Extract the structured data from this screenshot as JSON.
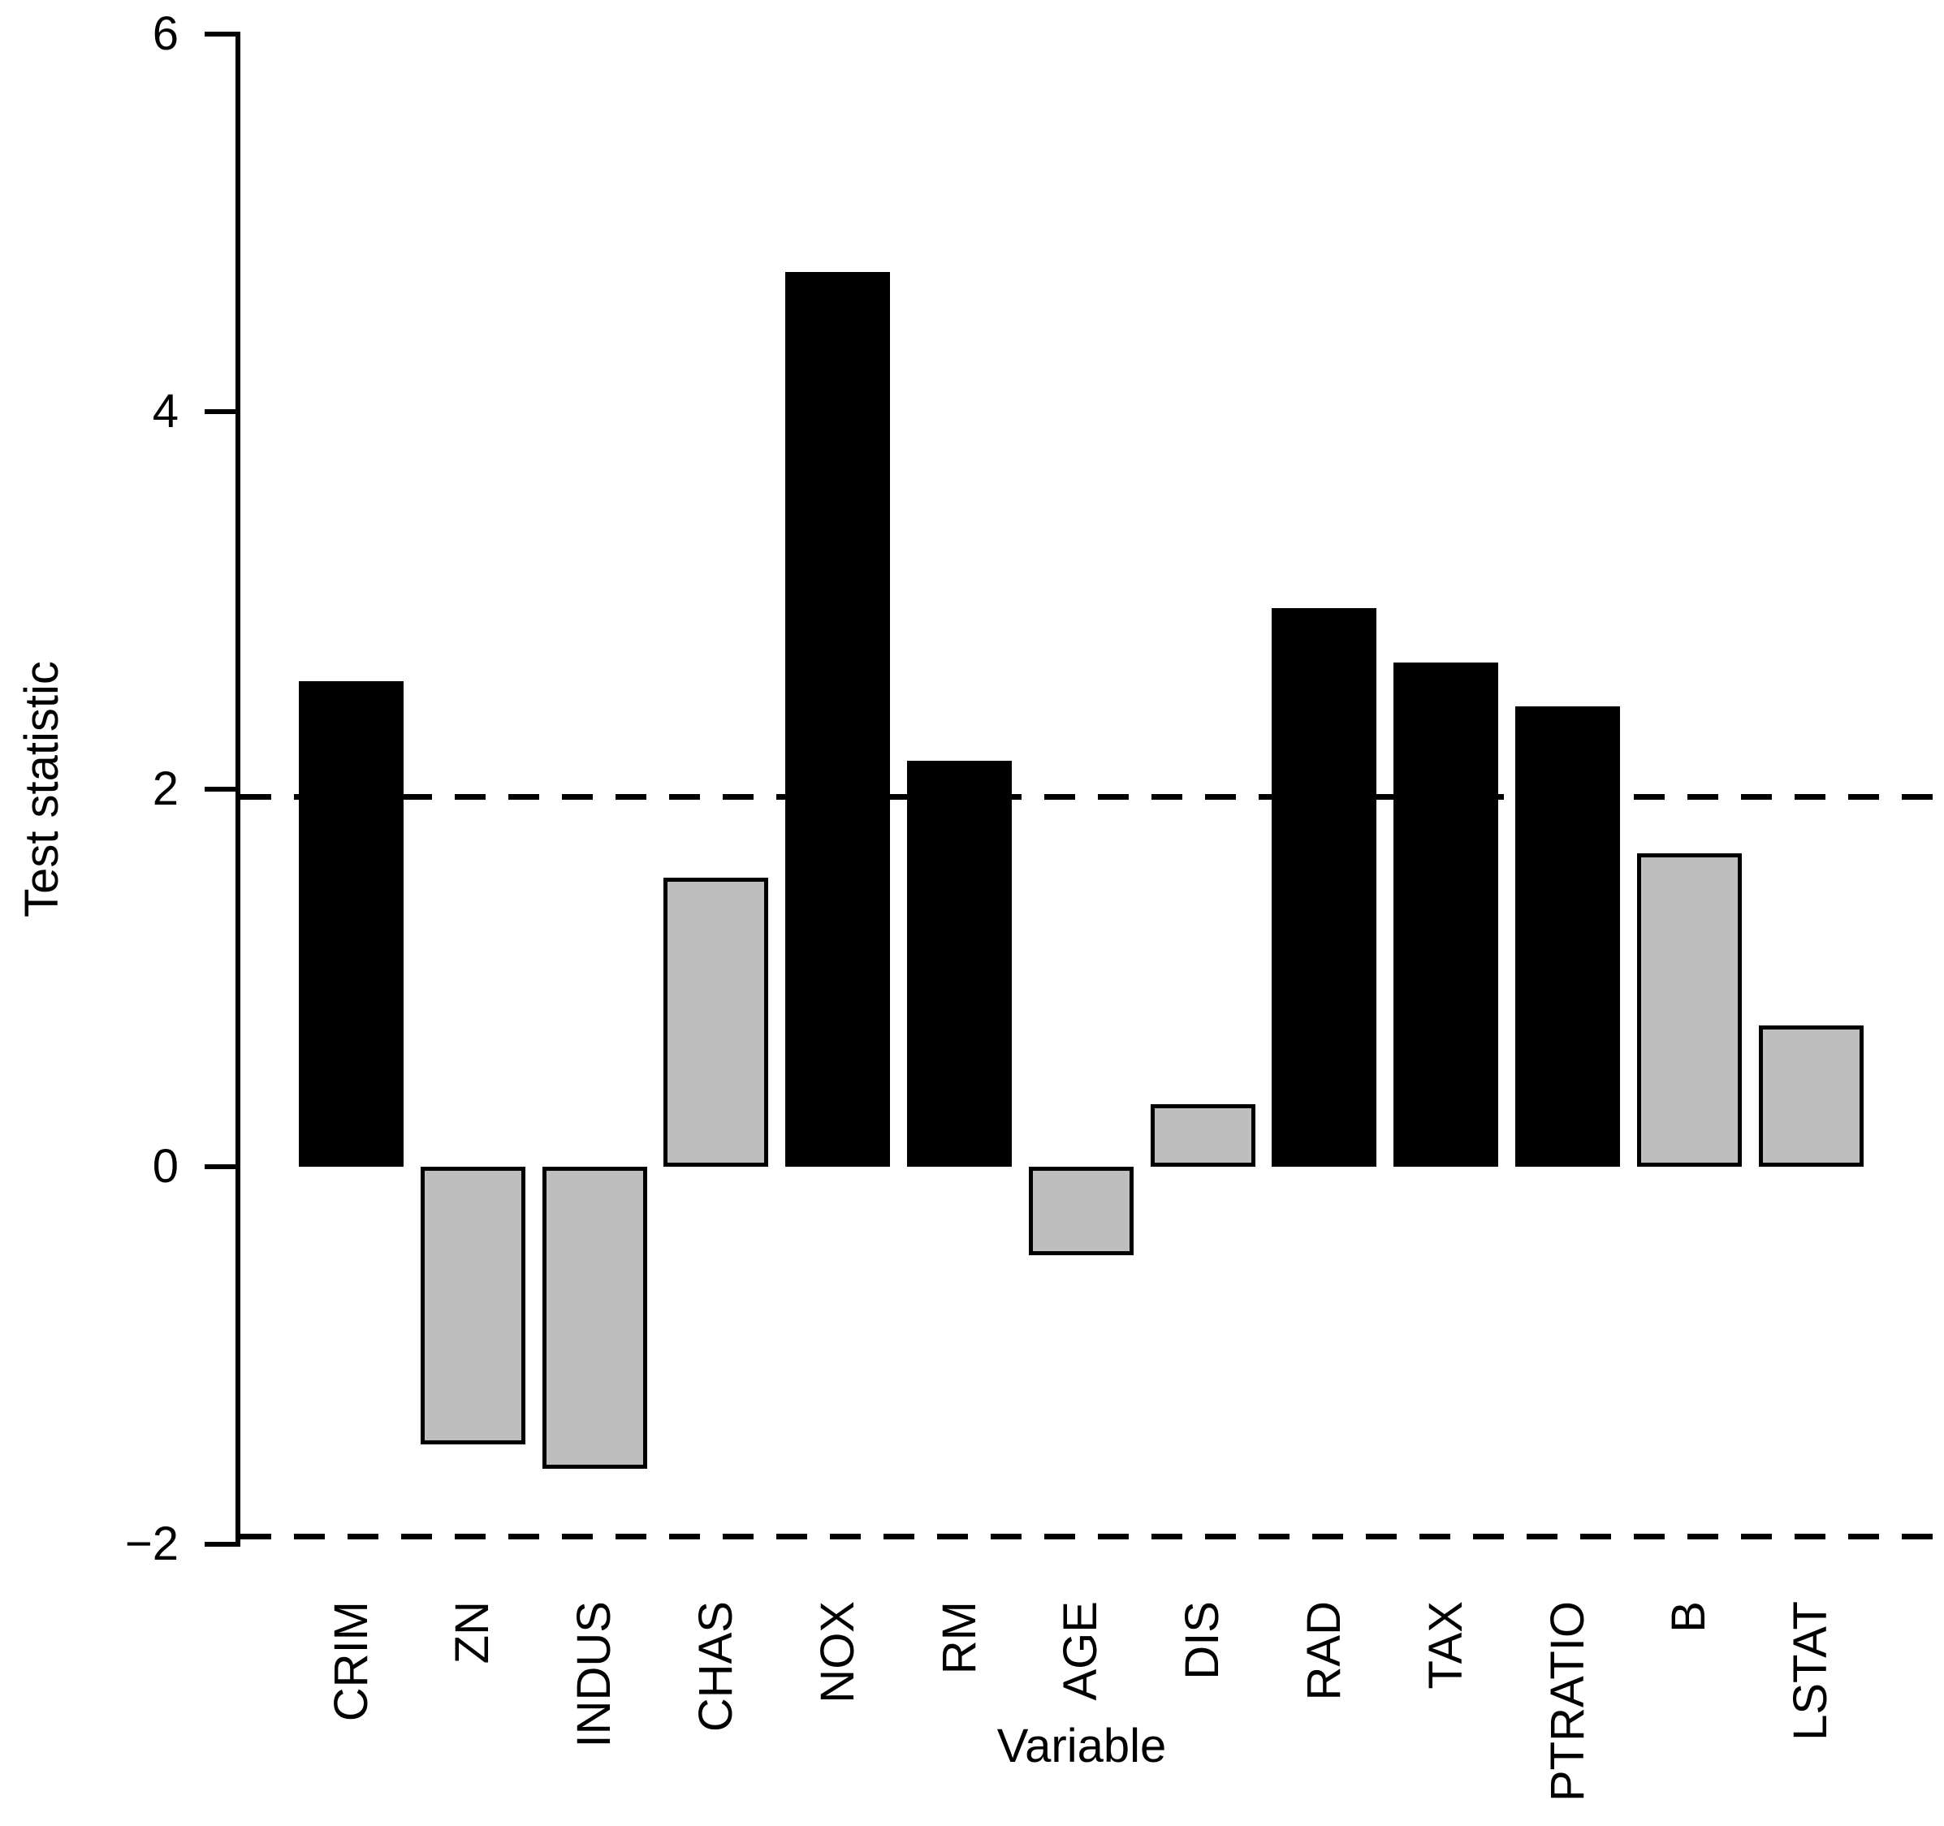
{
  "figure": {
    "background_color": "#ffffff",
    "axis_color": "#000000",
    "bar_border_color": "#000000",
    "palette": {
      "black": "#000000",
      "gray": "#BEBEBE"
    }
  },
  "chart_data": {
    "type": "bar",
    "title": "",
    "xlabel": "Variable",
    "ylabel": "Test statistic",
    "categories": [
      "CRIM",
      "ZN",
      "INDUS",
      "CHAS",
      "NOX",
      "RM",
      "AGE",
      "DIS",
      "RAD",
      "TAX",
      "PTRATIO",
      "B",
      "LSTAT"
    ],
    "values": [
      2.57,
      -1.47,
      -1.6,
      1.53,
      4.74,
      2.15,
      -0.47,
      0.33,
      2.96,
      2.67,
      2.44,
      1.66,
      0.75
    ],
    "bar_colors": [
      "black",
      "gray",
      "gray",
      "gray",
      "black",
      "black",
      "gray",
      "gray",
      "black",
      "black",
      "black",
      "gray",
      "gray"
    ],
    "yticks": [
      6,
      4,
      2,
      0,
      -2
    ],
    "ytick_labels": [
      "6",
      "4",
      "2",
      "0",
      "−2"
    ],
    "ylim": [
      -2.3,
      6
    ],
    "reference_lines": [
      1.96,
      -1.96
    ],
    "reference_line_style": "dashed",
    "grid": false,
    "legend_position": "none"
  }
}
